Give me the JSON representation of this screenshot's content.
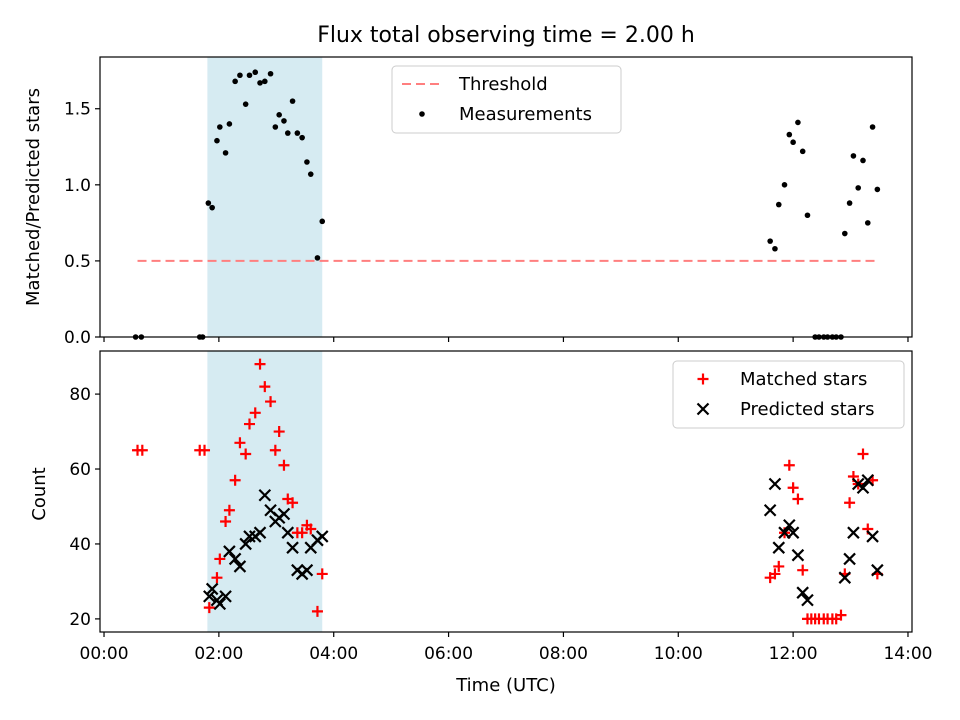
{
  "figure": {
    "title": "Flux total observing time = 2.00 h",
    "xlabel": "Time (UTC)"
  },
  "chart_data": [
    {
      "type": "scatter",
      "panel": "top",
      "ylabel": "Matched/Predicted stars",
      "xlim": [
        "00:00",
        "14:00"
      ],
      "xlim_hours": [
        -0.07,
        14.07
      ],
      "x_ticks": [
        "00:00",
        "02:00",
        "04:00",
        "06:00",
        "08:00",
        "10:00",
        "12:00",
        "14:00"
      ],
      "ylim": [
        0,
        1.84
      ],
      "y_ticks": [
        "0.0",
        "0.5",
        "1.0",
        "1.5"
      ],
      "y_tick_values": [
        0,
        0.5,
        1.0,
        1.5
      ],
      "legend_position": "upper center",
      "shaded_region": {
        "start": "01:48",
        "end": "03:48",
        "color": "#add8e6"
      },
      "threshold": {
        "name": "Threshold",
        "value": 0.5,
        "from": "00:35",
        "to": "13:30",
        "color": "#ff7f7f",
        "style": "dashed"
      },
      "series": [
        {
          "name": "Measurements",
          "color": "#000000",
          "marker": "dot",
          "points": [
            [
              "00:33",
              0
            ],
            [
              "00:39",
              0
            ],
            [
              "01:40",
              0
            ],
            [
              "01:43",
              0
            ],
            [
              "01:49",
              0.88
            ],
            [
              "01:53",
              0.85
            ],
            [
              "01:58",
              1.29
            ],
            [
              "02:01",
              1.38
            ],
            [
              "02:07",
              1.21
            ],
            [
              "02:11",
              1.4
            ],
            [
              "02:17",
              1.68
            ],
            [
              "02:22",
              1.72
            ],
            [
              "02:28",
              1.53
            ],
            [
              "02:32",
              1.72
            ],
            [
              "02:38",
              1.74
            ],
            [
              "02:43",
              1.67
            ],
            [
              "02:48",
              1.68
            ],
            [
              "02:54",
              1.73
            ],
            [
              "02:59",
              1.38
            ],
            [
              "03:03",
              1.46
            ],
            [
              "03:08",
              1.42
            ],
            [
              "03:12",
              1.34
            ],
            [
              "03:17",
              1.55
            ],
            [
              "03:22",
              1.34
            ],
            [
              "03:27",
              1.31
            ],
            [
              "03:32",
              1.15
            ],
            [
              "03:36",
              1.07
            ],
            [
              "03:43",
              0.52
            ],
            [
              "03:48",
              0.76
            ],
            [
              "11:36",
              0.63
            ],
            [
              "11:41",
              0.58
            ],
            [
              "11:45",
              0.87
            ],
            [
              "11:51",
              1.0
            ],
            [
              "11:56",
              1.33
            ],
            [
              "12:00",
              1.28
            ],
            [
              "12:05",
              1.41
            ],
            [
              "12:10",
              1.22
            ],
            [
              "12:15",
              0.8
            ],
            [
              "12:23",
              0
            ],
            [
              "12:27",
              0
            ],
            [
              "12:32",
              0
            ],
            [
              "12:36",
              0
            ],
            [
              "12:41",
              0
            ],
            [
              "12:45",
              0
            ],
            [
              "12:50",
              0
            ],
            [
              "12:54",
              0.68
            ],
            [
              "12:59",
              0.88
            ],
            [
              "13:03",
              1.19
            ],
            [
              "13:08",
              0.98
            ],
            [
              "13:13",
              1.16
            ],
            [
              "13:18",
              0.75
            ],
            [
              "13:23",
              1.38
            ],
            [
              "13:28",
              0.97
            ]
          ]
        }
      ]
    },
    {
      "type": "scatter",
      "panel": "bottom",
      "ylabel": "Count",
      "xlim": [
        "00:00",
        "14:00"
      ],
      "xlim_hours": [
        -0.07,
        14.07
      ],
      "x_ticks": [
        "00:00",
        "02:00",
        "04:00",
        "06:00",
        "08:00",
        "10:00",
        "12:00",
        "14:00"
      ],
      "ylim": [
        16.5,
        91.5
      ],
      "y_ticks": [
        "20",
        "40",
        "60",
        "80"
      ],
      "y_tick_values": [
        20,
        40,
        60,
        80
      ],
      "legend_position": "upper right",
      "shaded_region": {
        "start": "01:48",
        "end": "03:48",
        "color": "#add8e6"
      },
      "series": [
        {
          "name": "Matched stars",
          "color": "#ff0000",
          "marker": "plus",
          "points": [
            [
              "00:35",
              65
            ],
            [
              "00:40",
              65
            ],
            [
              "01:40",
              65
            ],
            [
              "01:45",
              65
            ],
            [
              "01:50",
              23
            ],
            [
              "01:58",
              31
            ],
            [
              "02:01",
              36
            ],
            [
              "02:07",
              46
            ],
            [
              "02:11",
              49
            ],
            [
              "02:17",
              57
            ],
            [
              "02:22",
              67
            ],
            [
              "02:28",
              64
            ],
            [
              "02:32",
              72
            ],
            [
              "02:38",
              75
            ],
            [
              "02:43",
              88
            ],
            [
              "02:48",
              82
            ],
            [
              "02:54",
              78
            ],
            [
              "02:59",
              65
            ],
            [
              "03:03",
              70
            ],
            [
              "03:08",
              61
            ],
            [
              "03:12",
              52
            ],
            [
              "03:17",
              51
            ],
            [
              "03:22",
              43
            ],
            [
              "03:27",
              43
            ],
            [
              "03:32",
              45
            ],
            [
              "03:36",
              44
            ],
            [
              "03:43",
              22
            ],
            [
              "03:48",
              32
            ],
            [
              "11:36",
              31
            ],
            [
              "11:41",
              32
            ],
            [
              "11:45",
              34
            ],
            [
              "11:51",
              43
            ],
            [
              "11:56",
              61
            ],
            [
              "12:00",
              55
            ],
            [
              "12:05",
              52
            ],
            [
              "12:10",
              33
            ],
            [
              "12:15",
              20
            ],
            [
              "12:19",
              20
            ],
            [
              "12:23",
              20
            ],
            [
              "12:27",
              20
            ],
            [
              "12:32",
              20
            ],
            [
              "12:36",
              20
            ],
            [
              "12:41",
              20
            ],
            [
              "12:45",
              20
            ],
            [
              "12:50",
              21
            ],
            [
              "12:54",
              32
            ],
            [
              "12:59",
              51
            ],
            [
              "13:03",
              58
            ],
            [
              "13:08",
              56
            ],
            [
              "13:13",
              64
            ],
            [
              "13:18",
              44
            ],
            [
              "13:23",
              57
            ],
            [
              "13:28",
              32
            ]
          ]
        },
        {
          "name": "Predicted stars",
          "color": "#000000",
          "marker": "x",
          "points": [
            [
              "01:50",
              26
            ],
            [
              "01:53",
              28
            ],
            [
              "01:58",
              25
            ],
            [
              "02:01",
              24
            ],
            [
              "02:07",
              26
            ],
            [
              "02:11",
              38
            ],
            [
              "02:17",
              36
            ],
            [
              "02:22",
              34
            ],
            [
              "02:28",
              40
            ],
            [
              "02:32",
              42
            ],
            [
              "02:38",
              42
            ],
            [
              "02:43",
              43
            ],
            [
              "02:48",
              53
            ],
            [
              "02:54",
              49
            ],
            [
              "02:59",
              46
            ],
            [
              "03:03",
              47
            ],
            [
              "03:08",
              48
            ],
            [
              "03:12",
              43
            ],
            [
              "03:17",
              39
            ],
            [
              "03:22",
              33
            ],
            [
              "03:27",
              32
            ],
            [
              "03:32",
              33
            ],
            [
              "03:36",
              39
            ],
            [
              "03:43",
              41
            ],
            [
              "03:48",
              42
            ],
            [
              "11:36",
              49
            ],
            [
              "11:41",
              56
            ],
            [
              "11:45",
              39
            ],
            [
              "11:51",
              43
            ],
            [
              "11:56",
              45
            ],
            [
              "12:00",
              43
            ],
            [
              "12:05",
              37
            ],
            [
              "12:10",
              27
            ],
            [
              "12:15",
              25
            ],
            [
              "12:54",
              31
            ],
            [
              "12:59",
              36
            ],
            [
              "13:03",
              43
            ],
            [
              "13:08",
              56
            ],
            [
              "13:13",
              55
            ],
            [
              "13:18",
              57
            ],
            [
              "13:23",
              42
            ],
            [
              "13:28",
              33
            ]
          ]
        }
      ]
    }
  ]
}
